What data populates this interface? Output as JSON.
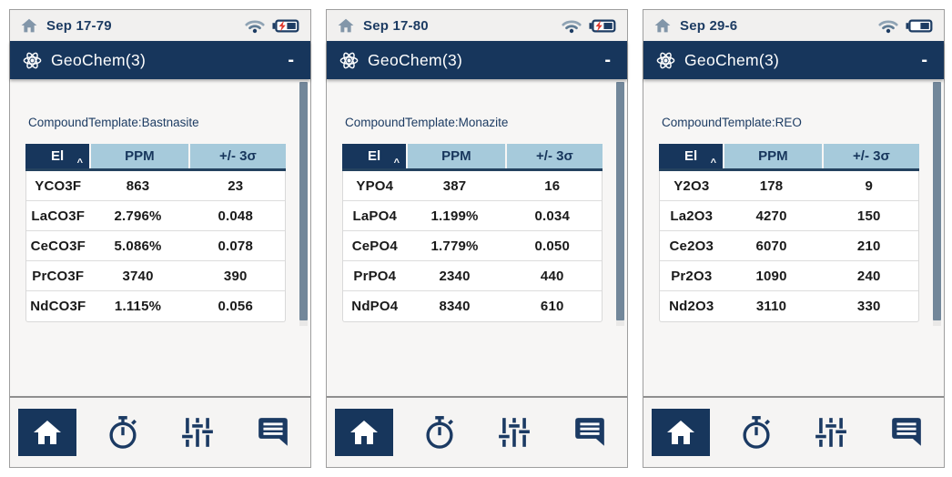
{
  "app": {
    "title": "GeoChem(3)",
    "minimize_label": "-",
    "sort_indicator": "^",
    "table_headers": [
      "El",
      "PPM",
      "+/- 3σ"
    ]
  },
  "nav": {
    "items": [
      "home",
      "stopwatch",
      "adjustments",
      "messages"
    ],
    "active_item": "home"
  },
  "colors": {
    "navy": "#17365C",
    "table_header_blue": "#A6CADB",
    "status_text_navy": "#1D3C63",
    "charging_bolt_red": "#E03A2F",
    "scrollbar_slate": "#72879A"
  },
  "panels": [
    {
      "status": {
        "date": "Sep 17-79",
        "wifi": true,
        "battery_charging": true
      },
      "template_label": "CompoundTemplate:Bastnasite",
      "table": {
        "rows": [
          [
            "YCO3F",
            "863",
            "23"
          ],
          [
            "LaCO3F",
            "2.796%",
            "0.048"
          ],
          [
            "CeCO3F",
            "5.086%",
            "0.078"
          ],
          [
            "PrCO3F",
            "3740",
            "390"
          ],
          [
            "NdCO3F",
            "1.115%",
            "0.056"
          ]
        ]
      }
    },
    {
      "status": {
        "date": "Sep 17-80",
        "wifi": true,
        "battery_charging": true
      },
      "template_label": "CompoundTemplate:Monazite",
      "table": {
        "rows": [
          [
            "YPO4",
            "387",
            "16"
          ],
          [
            "LaPO4",
            "1.199%",
            "0.034"
          ],
          [
            "CePO4",
            "1.779%",
            "0.050"
          ],
          [
            "PrPO4",
            "2340",
            "440"
          ],
          [
            "NdPO4",
            "8340",
            "610"
          ]
        ]
      }
    },
    {
      "status": {
        "date": "Sep 29-6",
        "wifi": true,
        "battery_charging": false
      },
      "template_label": "CompoundTemplate:REO",
      "table": {
        "rows": [
          [
            "Y2O3",
            "178",
            "9"
          ],
          [
            "La2O3",
            "4270",
            "150"
          ],
          [
            "Ce2O3",
            "6070",
            "210"
          ],
          [
            "Pr2O3",
            "1090",
            "240"
          ],
          [
            "Nd2O3",
            "3110",
            "330"
          ]
        ]
      }
    }
  ]
}
